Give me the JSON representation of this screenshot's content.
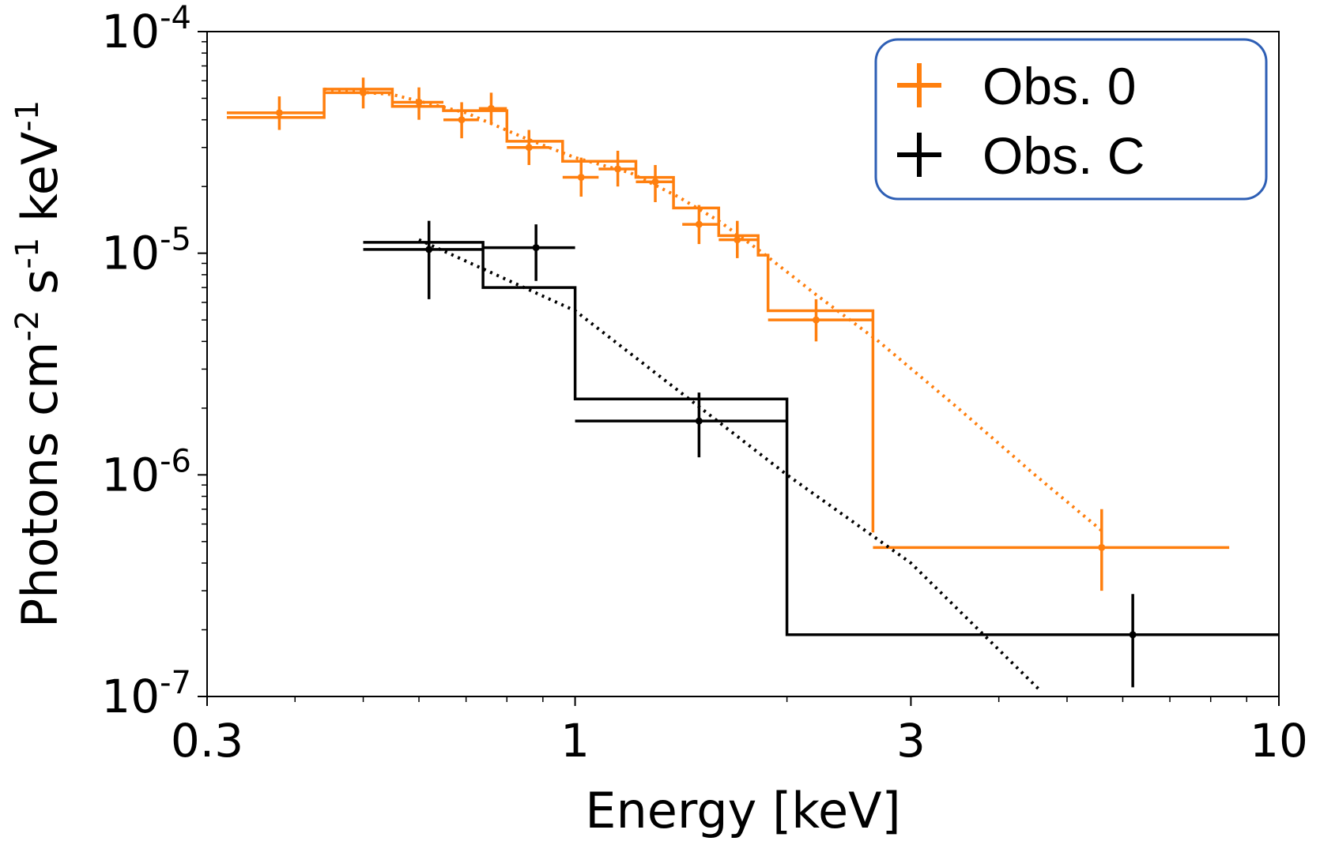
{
  "chart_data": {
    "type": "line",
    "title": "",
    "xlabel": "Energy [keV]",
    "ylabel_parts": [
      "Photons cm",
      "-2",
      " s",
      "-1",
      " keV",
      "-1"
    ],
    "xscale": "log",
    "yscale": "log",
    "xlim": [
      0.3,
      10
    ],
    "ylim": [
      1e-07,
      0.0001
    ],
    "x_ticks": [
      {
        "value": 0.3,
        "label": "0.3"
      },
      {
        "value": 1,
        "label": "1"
      },
      {
        "value": 3,
        "label": "3"
      },
      {
        "value": 10,
        "label": "10"
      }
    ],
    "y_ticks": [
      {
        "value": 0.0001,
        "base": "10",
        "exp": "-4"
      },
      {
        "value": 1e-05,
        "base": "10",
        "exp": "-5"
      },
      {
        "value": 1e-06,
        "base": "10",
        "exp": "-6"
      },
      {
        "value": 1e-07,
        "base": "10",
        "exp": "-7"
      }
    ],
    "legend": {
      "position": "top-right",
      "entries": [
        {
          "label": "Obs. 0",
          "color": "#ff7f0e"
        },
        {
          "label": "Obs. C",
          "color": "#000000"
        }
      ],
      "border_color": "#2e5fb5"
    },
    "series": [
      {
        "name": "Obs. 0",
        "color": "#ff7f0e",
        "points": [
          {
            "x": 0.38,
            "xlo": 0.32,
            "xhi": 0.44,
            "y": 4.3e-05,
            "ylo": 3.6e-05,
            "yhi": 5.1e-05
          },
          {
            "x": 0.5,
            "xlo": 0.44,
            "xhi": 0.55,
            "y": 5.3e-05,
            "ylo": 4.5e-05,
            "yhi": 6.2e-05
          },
          {
            "x": 0.6,
            "xlo": 0.55,
            "xhi": 0.65,
            "y": 4.8e-05,
            "ylo": 4e-05,
            "yhi": 5.6e-05
          },
          {
            "x": 0.69,
            "xlo": 0.65,
            "xhi": 0.73,
            "y": 4e-05,
            "ylo": 3.3e-05,
            "yhi": 4.8e-05
          },
          {
            "x": 0.76,
            "xlo": 0.73,
            "xhi": 0.8,
            "y": 4.5e-05,
            "ylo": 3.8e-05,
            "yhi": 5.3e-05
          },
          {
            "x": 0.86,
            "xlo": 0.8,
            "xhi": 0.92,
            "y": 3e-05,
            "ylo": 2.5e-05,
            "yhi": 3.6e-05
          },
          {
            "x": 1.02,
            "xlo": 0.96,
            "xhi": 1.08,
            "y": 2.2e-05,
            "ylo": 1.8e-05,
            "yhi": 2.7e-05
          },
          {
            "x": 1.15,
            "xlo": 1.08,
            "xhi": 1.22,
            "y": 2.4e-05,
            "ylo": 2e-05,
            "yhi": 2.9e-05
          },
          {
            "x": 1.3,
            "xlo": 1.22,
            "xhi": 1.38,
            "y": 2.1e-05,
            "ylo": 1.7e-05,
            "yhi": 2.5e-05
          },
          {
            "x": 1.5,
            "xlo": 1.42,
            "xhi": 1.6,
            "y": 1.35e-05,
            "ylo": 1.1e-05,
            "yhi": 1.65e-05
          },
          {
            "x": 1.7,
            "xlo": 1.6,
            "xhi": 1.82,
            "y": 1.15e-05,
            "ylo": 9.5e-06,
            "yhi": 1.4e-05
          },
          {
            "x": 2.2,
            "xlo": 1.88,
            "xhi": 2.65,
            "y": 5e-06,
            "ylo": 4e-06,
            "yhi": 6.2e-06
          },
          {
            "x": 5.6,
            "xlo": 2.65,
            "xhi": 8.5,
            "y": 4.7e-07,
            "ylo": 3e-07,
            "yhi": 7e-07
          }
        ],
        "model_steps": [
          [
            0.32,
            4.1e-05
          ],
          [
            0.44,
            4.1e-05
          ],
          [
            0.44,
            5.5e-05
          ],
          [
            0.55,
            5.5e-05
          ],
          [
            0.55,
            4.6e-05
          ],
          [
            0.65,
            4.6e-05
          ],
          [
            0.65,
            4.4e-05
          ],
          [
            0.8,
            4.4e-05
          ],
          [
            0.8,
            3.2e-05
          ],
          [
            0.96,
            3.2e-05
          ],
          [
            0.96,
            2.6e-05
          ],
          [
            1.22,
            2.6e-05
          ],
          [
            1.22,
            2.2e-05
          ],
          [
            1.38,
            2.2e-05
          ],
          [
            1.38,
            1.6e-05
          ],
          [
            1.6,
            1.6e-05
          ],
          [
            1.6,
            1.2e-05
          ],
          [
            1.82,
            1.2e-05
          ],
          [
            1.82,
            9.8e-06
          ],
          [
            1.88,
            9.8e-06
          ],
          [
            1.88,
            5.5e-06
          ],
          [
            2.65,
            5.5e-06
          ],
          [
            2.65,
            5.5e-07
          ]
        ],
        "model_dotted": [
          [
            0.44,
            5.5e-05
          ],
          [
            0.55,
            5.2e-05
          ],
          [
            0.7,
            4.3e-05
          ],
          [
            0.85,
            3.3e-05
          ],
          [
            1.0,
            2.7e-05
          ],
          [
            1.2,
            2.3e-05
          ],
          [
            1.4,
            1.8e-05
          ],
          [
            1.6,
            1.4e-05
          ],
          [
            1.85,
            1e-05
          ],
          [
            2.2,
            6.5e-06
          ],
          [
            2.7,
            4e-06
          ],
          [
            3.5,
            2e-06
          ],
          [
            4.5,
            1e-06
          ],
          [
            5.6,
            5.6e-07
          ]
        ]
      },
      {
        "name": "Obs. C",
        "color": "#000000",
        "points": [
          {
            "x": 0.62,
            "xlo": 0.5,
            "xhi": 0.74,
            "y": 1.04e-05,
            "ylo": 6.2e-06,
            "yhi": 1.4e-05
          },
          {
            "x": 0.88,
            "xlo": 0.74,
            "xhi": 1.0,
            "y": 1.06e-05,
            "ylo": 7.5e-06,
            "yhi": 1.35e-05
          },
          {
            "x": 1.5,
            "xlo": 1.0,
            "xhi": 2.0,
            "y": 1.75e-06,
            "ylo": 1.2e-06,
            "yhi": 2.35e-06
          },
          {
            "x": 6.2,
            "xlo": 2.0,
            "xhi": 10,
            "y": 1.9e-07,
            "ylo": 1.1e-07,
            "yhi": 2.9e-07
          }
        ],
        "model_steps": [
          [
            0.5,
            1.12e-05
          ],
          [
            0.74,
            1.12e-05
          ],
          [
            0.74,
            7e-06
          ],
          [
            1.0,
            7e-06
          ],
          [
            1.0,
            2.2e-06
          ],
          [
            2.0,
            2.2e-06
          ],
          [
            2.0,
            1.9e-07
          ],
          [
            10,
            1.9e-07
          ]
        ],
        "model_dotted": [
          [
            0.6,
            1.15e-05
          ],
          [
            1.0,
            5.5e-06
          ],
          [
            2.0,
            1e-06
          ],
          [
            3.0,
            4e-07
          ],
          [
            4.6,
            1.05e-07
          ]
        ]
      }
    ]
  }
}
